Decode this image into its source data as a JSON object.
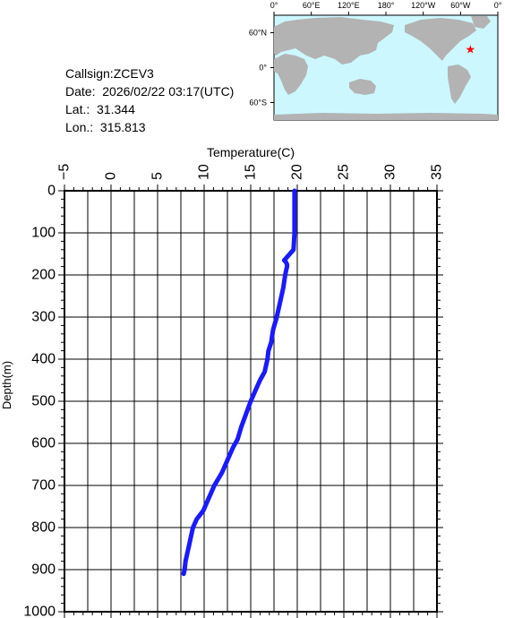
{
  "info": {
    "callsign_label": "Callsign:",
    "callsign": "ZCEV3",
    "date_label": "Date:",
    "date": "2026/02/22 03:17(UTC)",
    "lat_label": "Lat.:",
    "lat": "31.344",
    "lon_label": "Lon.:",
    "lon": "315.813"
  },
  "map": {
    "top_labels": [
      "0°",
      "60°E",
      "120°E",
      "180°",
      "120°W",
      "60°W",
      "0°"
    ],
    "left_labels": [
      "60°N",
      "0°",
      "60°S"
    ],
    "ocean_color": "#ccf7ff",
    "land_color": "#b3b3b3",
    "marker_color": "#ff0000",
    "marker_icon": "star-icon"
  },
  "chart_data": {
    "type": "line",
    "title": "",
    "xlabel": "Temperature(C)",
    "ylabel": "Depth(m)",
    "xlim": [
      -5,
      35
    ],
    "ylim": [
      0,
      1000
    ],
    "y_inverted": true,
    "x_axis_position": "top",
    "grid": true,
    "xticks": [
      "-5",
      "0",
      "5",
      "10",
      "15",
      "20",
      "25",
      "30",
      "35"
    ],
    "yticks": [
      "0",
      "100",
      "200",
      "300",
      "400",
      "500",
      "600",
      "700",
      "800",
      "900",
      "1000"
    ],
    "line_color": "#1a1aff",
    "series": [
      {
        "depth": [
          0,
          50,
          100,
          140,
          155,
          165,
          170,
          175,
          180,
          190,
          200,
          230,
          260,
          280,
          300,
          330,
          360,
          380,
          400,
          430,
          450,
          470,
          500,
          530,
          560,
          590,
          610,
          640,
          670,
          700,
          720,
          740,
          760,
          780,
          800,
          820,
          840,
          860,
          880,
          900,
          910
        ],
        "temperature": [
          19.7,
          19.7,
          19.7,
          19.6,
          19.0,
          18.6,
          18.8,
          18.9,
          18.9,
          18.8,
          18.7,
          18.5,
          18.2,
          18.0,
          17.8,
          17.4,
          17.2,
          16.9,
          16.8,
          16.5,
          16.0,
          15.6,
          15.0,
          14.5,
          14.0,
          13.6,
          13.1,
          12.5,
          11.9,
          11.1,
          10.7,
          10.3,
          9.9,
          9.2,
          8.8,
          8.6,
          8.4,
          8.2,
          8.0,
          7.9,
          7.8
        ]
      }
    ]
  }
}
